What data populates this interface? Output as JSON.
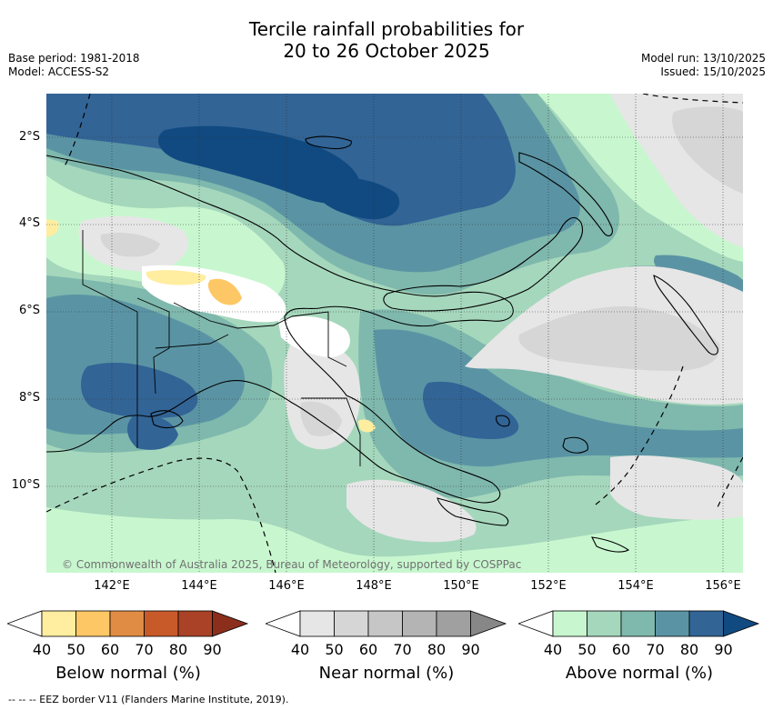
{
  "title": {
    "line1": "Tercile rainfall probabilities for",
    "line2": "20 to 26 October 2025"
  },
  "meta": {
    "base_period": "Base period: 1981-2018",
    "model": "Model: ACCESS-S2",
    "model_run": "Model run: 13/10/2025",
    "issued": "Issued: 15/10/2025"
  },
  "axes": {
    "lat_labels": [
      "2°S",
      "4°S",
      "6°S",
      "8°S",
      "10°S"
    ],
    "lon_labels": [
      "142°E",
      "144°E",
      "146°E",
      "148°E",
      "150°E",
      "152°E",
      "154°E",
      "156°E"
    ]
  },
  "credit": "© Commonwealth of Australia 2025, Bureau of Meteorology, supported by COSPPac",
  "colorbars": [
    {
      "title": "Below normal (%)",
      "ticks": [
        "40",
        "50",
        "60",
        "70",
        "80",
        "90"
      ],
      "colors": [
        "#ffffff",
        "#ffeda0",
        "#fdc765",
        "#e08c44",
        "#c85a2a",
        "#a94226",
        "#8b2f1c"
      ]
    },
    {
      "title": "Near normal (%)",
      "ticks": [
        "40",
        "50",
        "60",
        "70",
        "80",
        "90"
      ],
      "colors": [
        "#ffffff",
        "#e6e6e6",
        "#d6d6d6",
        "#c6c6c6",
        "#b4b4b4",
        "#a0a0a0",
        "#878787"
      ]
    },
    {
      "title": "Above normal (%)",
      "ticks": [
        "40",
        "50",
        "60",
        "70",
        "80",
        "90"
      ],
      "colors": [
        "#ffffff",
        "#c8f7cf",
        "#a5d7bc",
        "#7fb8ad",
        "#5a94a4",
        "#326496",
        "#104a80"
      ]
    }
  ],
  "footer": "-- -- -- EEZ border V11 (Flanders Marine Institute, 2019).",
  "palette": {
    "below_40": "#ffeda0",
    "below_50": "#fdc765",
    "near_40": "#e6e6e6",
    "near_50": "#d6d6d6",
    "above_40": "#c8f7cf",
    "above_50": "#a5d7bc",
    "above_60": "#7fb8ad",
    "above_70": "#5a94a4",
    "above_80": "#326496",
    "above_90": "#104a80"
  }
}
